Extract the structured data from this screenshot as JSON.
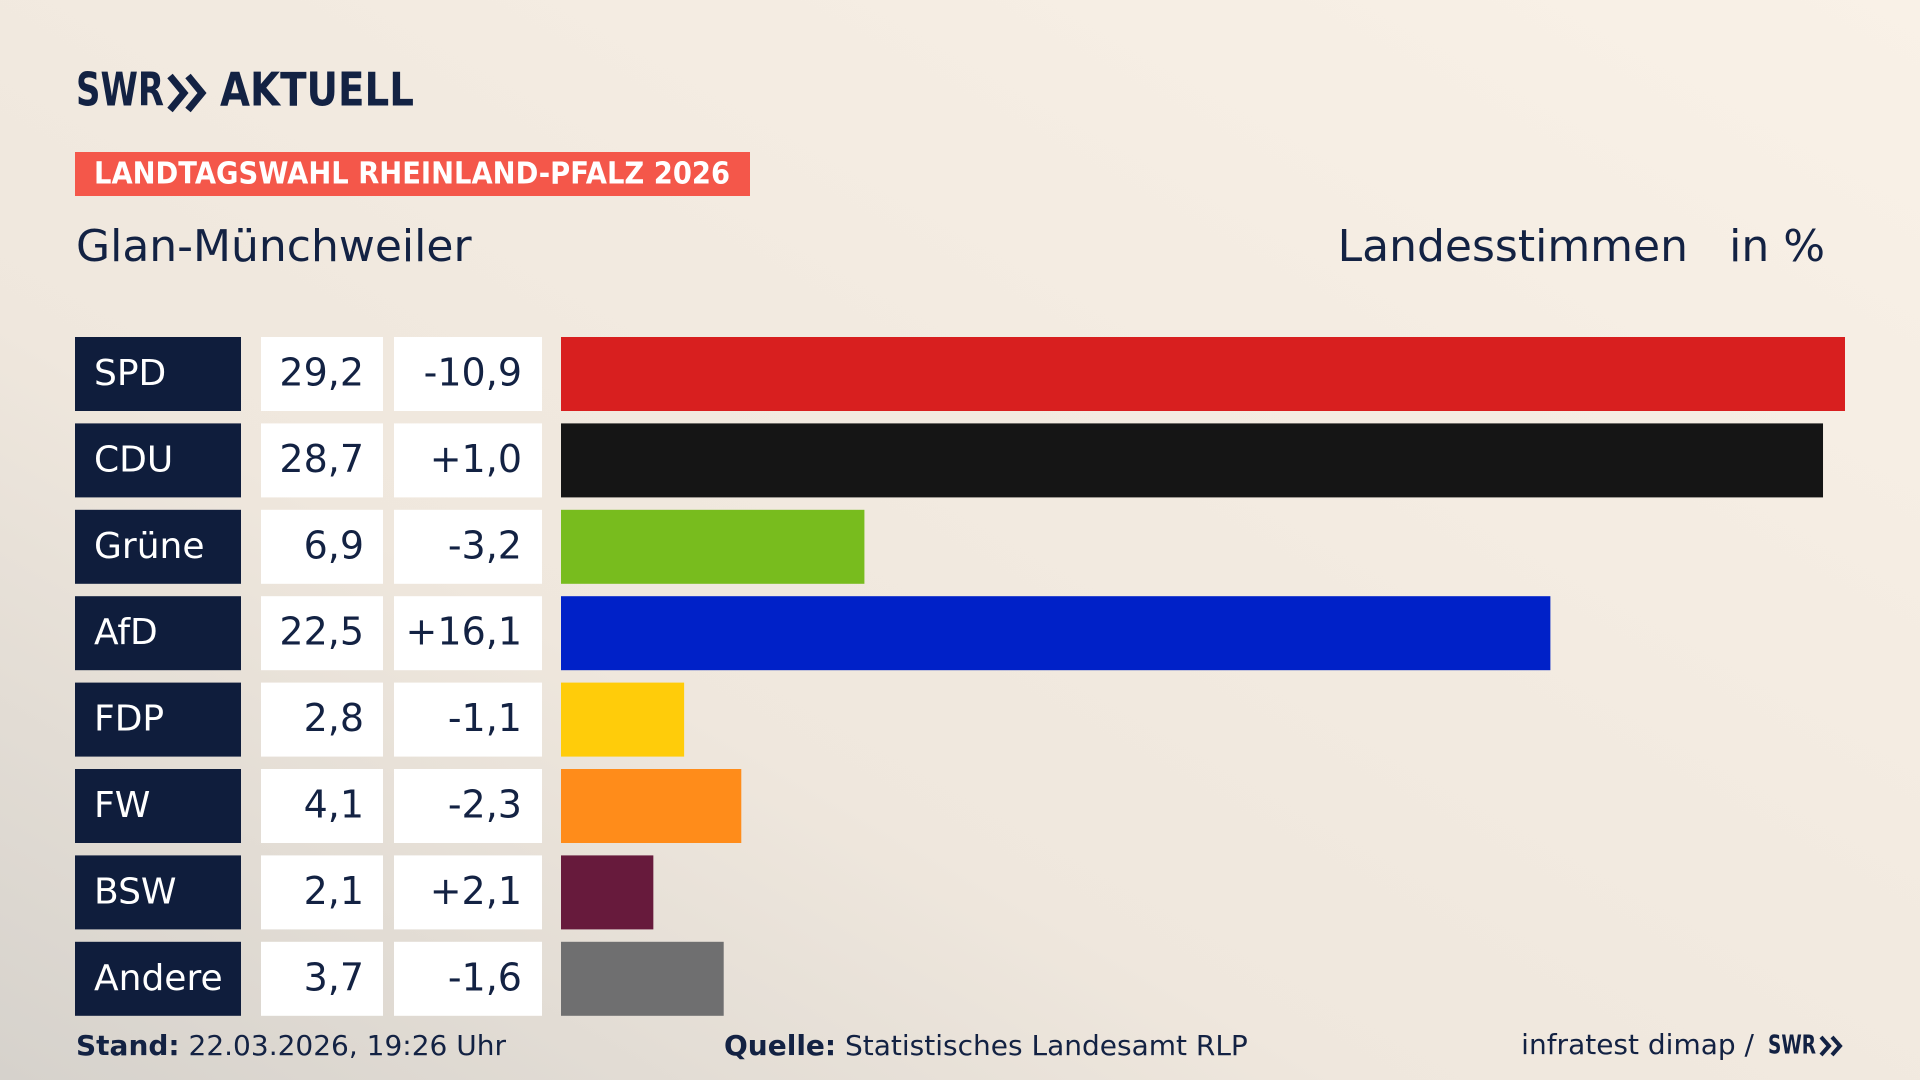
{
  "header": {
    "logo": "SWR",
    "logo_text": "AKTUELL",
    "banner": "LANDTAGSWAHL RHEINLAND-PFALZ 2026"
  },
  "chart_data": {
    "type": "bar",
    "orientation": "horizontal",
    "title": "Glan-Münchweiler",
    "measure": "Landesstimmen",
    "unit": "in %",
    "categories": [
      "SPD",
      "CDU",
      "Grüne",
      "AfD",
      "FDP",
      "FW",
      "BSW",
      "Andere"
    ],
    "values": [
      29.2,
      28.7,
      6.9,
      22.5,
      2.8,
      4.1,
      2.1,
      3.7
    ],
    "value_labels": [
      "29,2",
      "28,7",
      "6,9",
      "22,5",
      "2,8",
      "4,1",
      "2,1",
      "3,7"
    ],
    "changes": [
      "-10,9",
      "+1,0",
      "-3,2",
      "+16,1",
      "-1,1",
      "-2,3",
      "+2,1",
      "-1,6"
    ],
    "colors": [
      "#d81f1f",
      "#151515",
      "#78bc1e",
      "#0021c8",
      "#ffcc0a",
      "#ff8c1a",
      "#671a3c",
      "#6f6f70"
    ],
    "xlim": [
      0,
      29.2
    ]
  },
  "footer": {
    "stand_label": "Stand:",
    "stand": "22.03.2026, 19:26 Uhr",
    "source_label": "Quelle:",
    "source": "Statistisches Landesamt RLP",
    "institute": "infratest dimap /",
    "logo": "SWR"
  }
}
